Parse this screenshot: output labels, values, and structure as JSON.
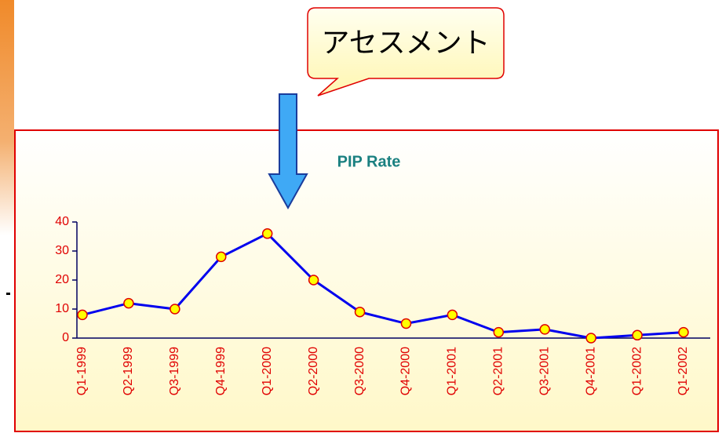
{
  "chart_data": {
    "type": "line",
    "title": "PIP Rate",
    "callout": "アセスメント",
    "categories": [
      "Q1-1999",
      "Q2-1999",
      "Q3-1999",
      "Q4-1999",
      "Q1-2000",
      "Q2-2000",
      "Q3-2000",
      "Q4-2000",
      "Q1-2001",
      "Q2-2001",
      "Q3-2001",
      "Q4-2001",
      "Q1-2002",
      "Q1-2002"
    ],
    "values": [
      8,
      12,
      10,
      28,
      36,
      20,
      9,
      5,
      8,
      2,
      3,
      0,
      1,
      2
    ],
    "color": "#0000ee",
    "marker_color": "#ffff00",
    "marker_edge": "#e00000",
    "ylim": [
      0,
      40
    ],
    "yticks": [
      0,
      10,
      20,
      30,
      40
    ],
    "grid": false
  }
}
